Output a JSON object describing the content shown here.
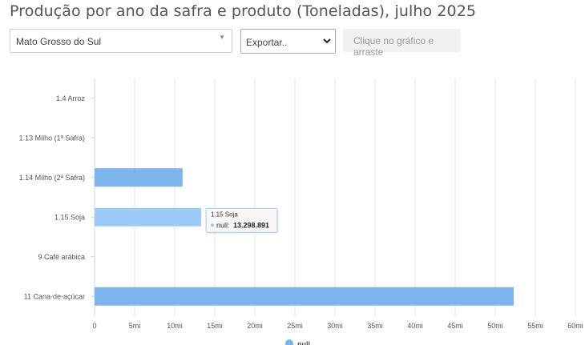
{
  "title": "Produção por ano da safra e produto (Toneladas), julho 2025",
  "controls": {
    "state_value": "Mato Grosso do Sul",
    "export_value": "Exportar..",
    "hint_label": "Clique no gráfico e arraste"
  },
  "chart_data": {
    "type": "bar",
    "orientation": "horizontal",
    "categories": [
      "1.4 Arroz",
      "1.13 Milho (1ª Safra)",
      "1.14 Milho (2ª Safra)",
      "1.15 Soja",
      "9 Café arábica",
      "11 Cana-de-açúcar"
    ],
    "series": [
      {
        "name": "null",
        "values": [
          null,
          null,
          10980000,
          13298891,
          null,
          52300000
        ]
      }
    ],
    "xlim": [
      0,
      60000000
    ],
    "x_ticks": [
      0,
      5000000,
      10000000,
      15000000,
      20000000,
      25000000,
      30000000,
      35000000,
      40000000,
      45000000,
      50000000,
      55000000,
      60000000
    ],
    "x_tick_labels": [
      "0",
      "5mi",
      "10mi",
      "15mi",
      "20mi",
      "25mi",
      "30mi",
      "35mi",
      "40mi",
      "45mi",
      "50mi",
      "55mi",
      "60mi"
    ],
    "grid": true,
    "legend": "bottom-center",
    "bar_color": "#7cb5ec",
    "highlight_color": "#9dcbf7",
    "highlight_index": 3,
    "tooltip": {
      "category": "1.15 Soja",
      "series_label": "null:",
      "value_label": "13.298.891"
    }
  }
}
